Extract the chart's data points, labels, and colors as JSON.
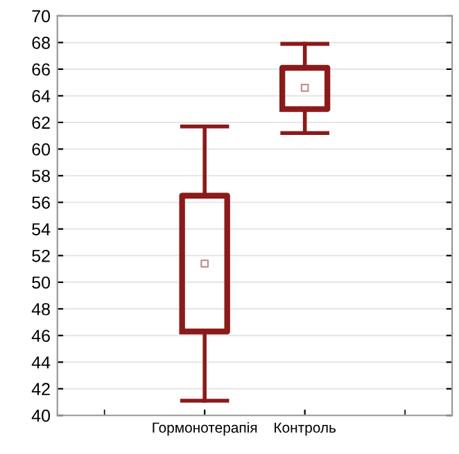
{
  "chart_data": {
    "type": "box",
    "categories": [
      "Гормонотерапія",
      "Контроль"
    ],
    "color": "#8b1a1a",
    "boxes": [
      {
        "low": 41.1,
        "q1": 46.3,
        "median": 51.4,
        "q3": 56.5,
        "high": 61.7
      },
      {
        "low": 61.2,
        "q1": 63.0,
        "median": 64.6,
        "q3": 66.1,
        "high": 67.9
      }
    ],
    "ylim": [
      40,
      70
    ],
    "yticks": [
      40,
      42,
      44,
      46,
      48,
      50,
      52,
      54,
      56,
      58,
      60,
      62,
      64,
      66,
      68,
      70
    ],
    "grid": "y"
  }
}
